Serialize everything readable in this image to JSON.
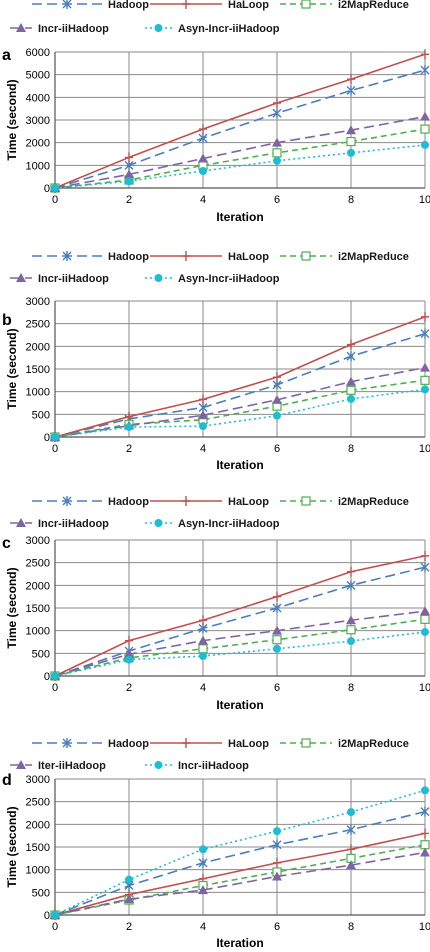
{
  "chart_data": [
    {
      "panel_label": "a",
      "type": "line",
      "xlabel": "Iteration",
      "ylabel": "Time (second)",
      "x": [
        0,
        2,
        4,
        6,
        8,
        10
      ],
      "x_ticks": [
        "0",
        "2",
        "4",
        "6",
        "8",
        "10"
      ],
      "ylim": [
        0,
        6000
      ],
      "y_ticks": [
        0,
        1000,
        2000,
        3000,
        4000,
        5000,
        6000
      ],
      "grid": true,
      "legend_position": "top",
      "series": [
        {
          "name": "Hadoop",
          "color": "#4A7EBB",
          "marker": "star",
          "dash": "long-dash",
          "values": [
            0,
            1000,
            2200,
            3300,
            4300,
            5200
          ]
        },
        {
          "name": "HaLoop",
          "color": "#C0504D",
          "marker": "plus",
          "dash": "solid",
          "values": [
            0,
            1350,
            2600,
            3750,
            4800,
            5900
          ]
        },
        {
          "name": "i2MapReduce",
          "color": "#4CAF50",
          "marker": "square",
          "dash": "dash",
          "values": [
            0,
            350,
            1000,
            1550,
            2050,
            2600
          ]
        },
        {
          "name": "Incr-iiHadoop",
          "color": "#8064A2",
          "marker": "triangle",
          "dash": "long-dash",
          "values": [
            0,
            600,
            1300,
            2000,
            2550,
            3150
          ]
        },
        {
          "name": "Asyn-Incr-iiHadoop",
          "color": "#1EBDD6",
          "marker": "circle",
          "dash": "dot",
          "values": [
            0,
            300,
            750,
            1200,
            1550,
            1900
          ]
        }
      ]
    },
    {
      "panel_label": "b",
      "type": "line",
      "xlabel": "Iteration",
      "ylabel": "Time (second)",
      "x": [
        0,
        2,
        4,
        6,
        8,
        10
      ],
      "x_ticks": [
        "0",
        "2",
        "4",
        "6",
        "8",
        "10"
      ],
      "ylim": [
        0,
        3000
      ],
      "y_ticks": [
        0,
        500,
        1000,
        1500,
        2000,
        2500,
        3000
      ],
      "grid": true,
      "legend_position": "top",
      "series": [
        {
          "name": "Hadoop",
          "color": "#4A7EBB",
          "marker": "star",
          "dash": "long-dash",
          "values": [
            0,
            400,
            650,
            1150,
            1780,
            2280
          ]
        },
        {
          "name": "HaLoop",
          "color": "#C0504D",
          "marker": "plus",
          "dash": "solid",
          "values": [
            0,
            450,
            830,
            1320,
            2040,
            2650
          ]
        },
        {
          "name": "i2MapReduce",
          "color": "#4CAF50",
          "marker": "square",
          "dash": "dash",
          "values": [
            0,
            280,
            380,
            680,
            1030,
            1250
          ]
        },
        {
          "name": "Incr-iiHadoop",
          "color": "#8064A2",
          "marker": "triangle",
          "dash": "long-dash",
          "values": [
            0,
            250,
            480,
            820,
            1220,
            1530
          ]
        },
        {
          "name": "Asyn-Incr-iiHadoop",
          "color": "#1EBDD6",
          "marker": "circle",
          "dash": "dot",
          "values": [
            0,
            220,
            240,
            470,
            840,
            1050
          ]
        }
      ]
    },
    {
      "panel_label": "c",
      "type": "line",
      "xlabel": "Iteration",
      "ylabel": "Time (second)",
      "x": [
        0,
        2,
        4,
        6,
        8,
        10
      ],
      "x_ticks": [
        "0",
        "2",
        "4",
        "6",
        "8",
        "10"
      ],
      "ylim": [
        0,
        3000
      ],
      "y_ticks": [
        0,
        500,
        1000,
        1500,
        2000,
        2500,
        3000
      ],
      "grid": true,
      "legend_position": "top",
      "series": [
        {
          "name": "Hadoop",
          "color": "#4A7EBB",
          "marker": "star",
          "dash": "long-dash",
          "values": [
            0,
            550,
            1050,
            1500,
            2000,
            2400
          ]
        },
        {
          "name": "HaLoop",
          "color": "#C0504D",
          "marker": "plus",
          "dash": "solid",
          "values": [
            0,
            780,
            1230,
            1750,
            2300,
            2650
          ]
        },
        {
          "name": "i2MapReduce",
          "color": "#4CAF50",
          "marker": "square",
          "dash": "dash",
          "values": [
            0,
            400,
            600,
            800,
            1020,
            1250
          ]
        },
        {
          "name": "Incr-iiHadoop",
          "color": "#8064A2",
          "marker": "triangle",
          "dash": "long-dash",
          "values": [
            0,
            480,
            780,
            1000,
            1230,
            1430
          ]
        },
        {
          "name": "Asyn-Incr-iiHadoop",
          "color": "#1EBDD6",
          "marker": "circle",
          "dash": "dot",
          "values": [
            0,
            360,
            440,
            600,
            770,
            970
          ]
        }
      ]
    },
    {
      "panel_label": "d",
      "type": "line",
      "xlabel": "Iteration",
      "ylabel": "Time (second)",
      "x": [
        0,
        2,
        4,
        6,
        8,
        10
      ],
      "x_ticks": [
        "0",
        "2",
        "4",
        "6",
        "8",
        "10"
      ],
      "ylim": [
        0,
        3000
      ],
      "y_ticks": [
        0,
        500,
        1000,
        1500,
        2000,
        2500,
        3000
      ],
      "grid": true,
      "legend_position": "top",
      "series": [
        {
          "name": "Hadoop",
          "color": "#4A7EBB",
          "marker": "star",
          "dash": "long-dash",
          "values": [
            0,
            650,
            1150,
            1550,
            1880,
            2280
          ]
        },
        {
          "name": "HaLoop",
          "color": "#C0504D",
          "marker": "plus",
          "dash": "solid",
          "values": [
            0,
            450,
            800,
            1150,
            1450,
            1800
          ]
        },
        {
          "name": "i2MapReduce",
          "color": "#4CAF50",
          "marker": "square",
          "dash": "dash",
          "values": [
            0,
            330,
            650,
            950,
            1250,
            1550
          ]
        },
        {
          "name": "Iter-iiHadoop",
          "color": "#8064A2",
          "marker": "triangle",
          "dash": "long-dash",
          "values": [
            0,
            350,
            550,
            850,
            1100,
            1380
          ]
        },
        {
          "name": "Incr-iiHadoop",
          "color": "#1EBDD6",
          "marker": "circle",
          "dash": "dot",
          "values": [
            0,
            780,
            1450,
            1850,
            2270,
            2750
          ]
        }
      ]
    }
  ]
}
